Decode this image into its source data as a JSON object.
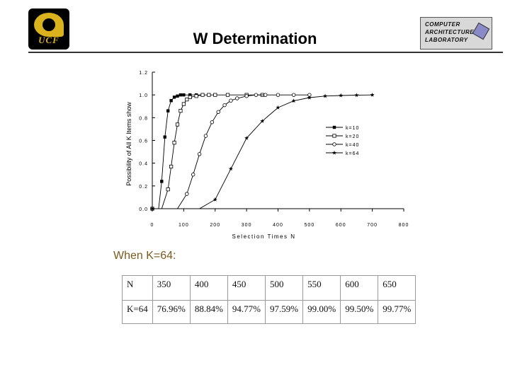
{
  "header": {
    "title": "W Determination",
    "logo_text": "UCF",
    "lab_lines": [
      "COMPUTER",
      "ARCHITECTURE",
      "LABORATORY"
    ]
  },
  "chart_data": {
    "type": "line",
    "title": "",
    "xlabel": "Selection Times N",
    "ylabel": "Possibility of All K Items show",
    "xlim": [
      0,
      800
    ],
    "ylim": [
      0.0,
      1.2
    ],
    "xticks": [
      "0",
      "100",
      "200",
      "300",
      "400",
      "500",
      "600",
      "700",
      "800"
    ],
    "yticks": [
      "0.0",
      "0.2",
      "0.4",
      "0.6",
      "0.8",
      "1.0",
      "1.2"
    ],
    "legend_position": "right",
    "series": [
      {
        "name": "k=10",
        "marker": "square-filled",
        "x": [
          0,
          20,
          30,
          40,
          50,
          60,
          70,
          80,
          90,
          100,
          120,
          140,
          160
        ],
        "y": [
          0.0,
          0.0,
          0.24,
          0.63,
          0.86,
          0.95,
          0.98,
          0.99,
          1.0,
          1.0,
          1.0,
          1.0,
          1.0
        ]
      },
      {
        "name": "k=20",
        "marker": "square-open",
        "x": [
          0,
          30,
          50,
          60,
          70,
          80,
          90,
          100,
          110,
          120,
          140,
          160,
          180,
          200,
          240,
          300,
          350
        ],
        "y": [
          0.0,
          0.0,
          0.17,
          0.37,
          0.58,
          0.74,
          0.86,
          0.92,
          0.96,
          0.98,
          0.99,
          1.0,
          1.0,
          1.0,
          1.0,
          1.0,
          1.0
        ]
      },
      {
        "name": "k=40",
        "marker": "circle-open",
        "x": [
          0,
          80,
          110,
          130,
          150,
          170,
          190,
          210,
          230,
          250,
          270,
          300,
          330,
          360,
          400,
          450,
          500
        ],
        "y": [
          0.0,
          0.0,
          0.13,
          0.3,
          0.48,
          0.64,
          0.76,
          0.85,
          0.91,
          0.95,
          0.97,
          0.99,
          1.0,
          1.0,
          1.0,
          1.0,
          1.0
        ]
      },
      {
        "name": "k=64",
        "marker": "star",
        "x": [
          0,
          150,
          200,
          250,
          300,
          350,
          400,
          450,
          500,
          550,
          600,
          650,
          700
        ],
        "y": [
          0.0,
          0.0,
          0.08,
          0.35,
          0.62,
          0.7696,
          0.8884,
          0.9477,
          0.9759,
          0.99,
          0.995,
          0.9977,
          1.0
        ]
      }
    ]
  },
  "caption": "When K=64:",
  "table": {
    "rows": [
      [
        "N",
        "350",
        "400",
        "450",
        "500",
        "550",
        "600",
        "650"
      ],
      [
        "K=64",
        "76.96%",
        "88.84%",
        "94.77%",
        "97.59%",
        "99.00%",
        "99.50%",
        "99.77%"
      ]
    ]
  }
}
